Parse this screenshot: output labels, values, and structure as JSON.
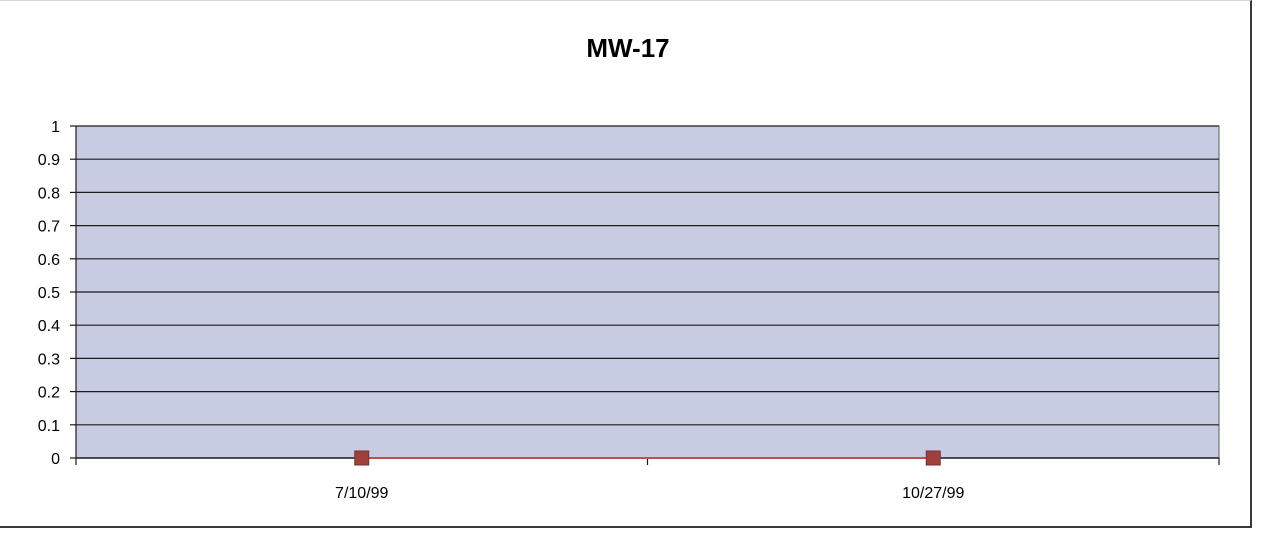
{
  "chart_data": {
    "type": "line",
    "title": "MW-17",
    "xlabel": "",
    "ylabel": "",
    "categories": [
      "7/10/99",
      "10/27/99"
    ],
    "series": [
      {
        "values": [
          0,
          0
        ],
        "color": "#c0504d",
        "marker_color": "#a0403c"
      }
    ],
    "ylim": [
      0,
      1
    ],
    "yticks": [
      0,
      0.1,
      0.2,
      0.3,
      0.4,
      0.5,
      0.6,
      0.7,
      0.8,
      0.9,
      1
    ],
    "ytick_labels": [
      "0",
      "0.1",
      "0.2",
      "0.3",
      "0.4",
      "0.5",
      "0.6",
      "0.7",
      "0.8",
      "0.9",
      "1"
    ],
    "grid": true,
    "legend": "none",
    "plot_background": "#c8cce2",
    "gridline_color": "#1a1a1a"
  }
}
